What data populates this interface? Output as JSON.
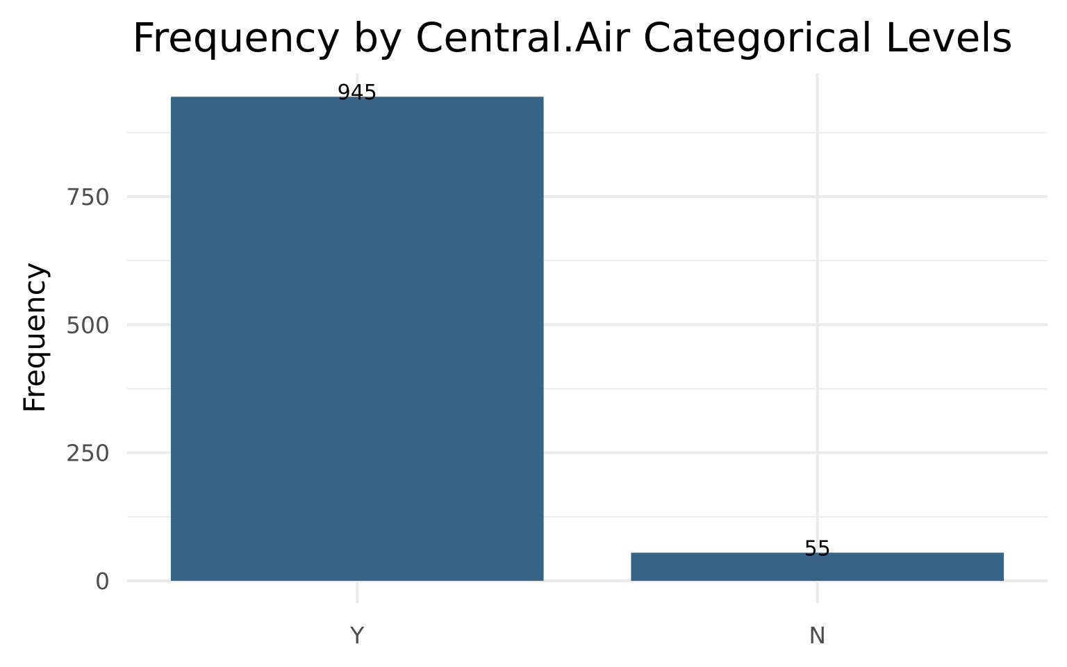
{
  "chart_data": {
    "type": "bar",
    "title": "Frequency by Central.Air Categorical Levels",
    "xlabel": "",
    "ylabel": "Frequency",
    "categories": [
      "Y",
      "N"
    ],
    "values": [
      945,
      55
    ],
    "data_labels": [
      "945",
      "55"
    ],
    "ylim": [
      0,
      1000
    ],
    "yticks": [
      0,
      250,
      500,
      750
    ],
    "ytick_labels": [
      "0",
      "250",
      "500",
      "750"
    ],
    "grid": true,
    "legend": "none",
    "colors": {
      "bar": "#386488",
      "grid": "#ebebeb",
      "tick_text": "#4d4d4d",
      "text": "#000000",
      "background": "#ffffff"
    }
  }
}
